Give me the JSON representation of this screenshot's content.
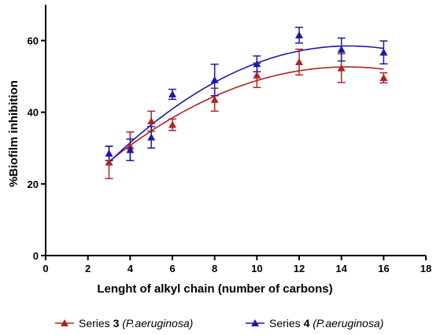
{
  "chart_data": {
    "type": "scatter",
    "xlabel": "Lenght of alkyl chain (number of carbons)",
    "ylabel": "%Biofilm inhibition",
    "xlim": [
      0,
      18
    ],
    "ylim": [
      0,
      70
    ],
    "x_ticks": [
      0,
      2,
      4,
      6,
      8,
      10,
      12,
      14,
      16,
      18
    ],
    "y_ticks": [
      0,
      20,
      40,
      60
    ],
    "grid": false,
    "legend_position": "bottom-center",
    "fit": "quadratic",
    "series": [
      {
        "key": "s3",
        "legend_prefix": "Series ",
        "legend_number": "3",
        "legend_species": "(P.aeruginosa)",
        "color": "#b22222",
        "marker": "triangle-up",
        "x": [
          3,
          4,
          5,
          6,
          8,
          10,
          12,
          14,
          16
        ],
        "y": [
          26.0,
          30.5,
          37.5,
          36.5,
          43.5,
          50.3,
          54.0,
          52.3,
          49.6
        ],
        "err": [
          4.5,
          4.0,
          2.8,
          1.6,
          3.2,
          3.4,
          3.6,
          4.0,
          1.4
        ],
        "fit_y": [
          26.0,
          30.8,
          35.0,
          38.6,
          44.4,
          48.7,
          51.5,
          52.6,
          52.1
        ]
      },
      {
        "key": "s4",
        "legend_prefix": "Series ",
        "legend_number": "4",
        "legend_species": "(P.aeruginosa)",
        "color": "#1a1aa6",
        "marker": "triangle-up",
        "x": [
          3,
          4,
          5,
          6,
          8,
          10,
          12,
          14,
          16
        ],
        "y": [
          28.5,
          29.5,
          33.0,
          45.0,
          49.0,
          53.5,
          61.5,
          57.5,
          56.7
        ],
        "err": [
          2.0,
          3.0,
          3.0,
          1.4,
          4.4,
          2.2,
          2.2,
          3.2,
          3.2
        ],
        "fit_y": [
          26.0,
          31.6,
          36.5,
          40.9,
          48.2,
          53.5,
          57.3,
          58.7,
          57.6
        ]
      }
    ]
  }
}
